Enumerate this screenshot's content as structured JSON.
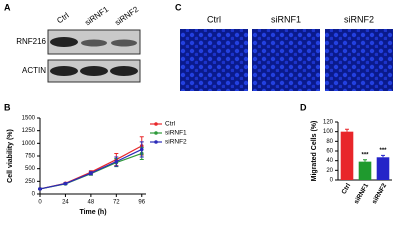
{
  "panel_a": {
    "label": "A",
    "lanes": [
      "Ctrl",
      "siRNF1",
      "siRNF2"
    ],
    "rows": [
      "RNF216",
      "ACTIN"
    ]
  },
  "panel_c": {
    "label": "C",
    "lanes": [
      "Ctrl",
      "siRNF1",
      "siRNF2"
    ]
  },
  "panel_labels": [
    "B",
    "D"
  ],
  "chart_data": [
    {
      "type": "line",
      "xlabel": "Time (h)",
      "ylabel": "Cell viability (%)",
      "x": [
        0,
        24,
        48,
        72,
        96
      ],
      "xlim": [
        0,
        100
      ],
      "xticks": [
        0,
        24,
        48,
        72,
        96
      ],
      "ylim": [
        0,
        1500
      ],
      "yticks": [
        0,
        250,
        500,
        750,
        1000,
        1250,
        1500
      ],
      "series": [
        {
          "name": "Ctrl",
          "color": "#e8262a",
          "values": [
            100,
            210,
            430,
            680,
            950
          ],
          "errors": [
            10,
            15,
            30,
            120,
            180
          ]
        },
        {
          "name": "siRNF1",
          "color": "#2e9a3a",
          "values": [
            100,
            200,
            400,
            620,
            800
          ],
          "errors": [
            10,
            15,
            30,
            80,
            120
          ]
        },
        {
          "name": "siRNF2",
          "color": "#2b2bb8",
          "values": [
            100,
            205,
            410,
            640,
            880
          ],
          "errors": [
            10,
            15,
            30,
            90,
            150
          ]
        }
      ]
    },
    {
      "type": "bar",
      "ylabel": "Migrated Cells (%)",
      "categories": [
        "Ctrl",
        "siRNF1",
        "siRNF2"
      ],
      "values": [
        100,
        38,
        47
      ],
      "errors": [
        5,
        4,
        4
      ],
      "colors": [
        "#e8262a",
        "#1f9a2e",
        "#2424c8"
      ],
      "significance": [
        null,
        "***",
        "***"
      ],
      "ylim": [
        0,
        120
      ],
      "yticks": [
        0,
        20,
        40,
        60,
        80,
        100,
        120
      ]
    }
  ]
}
